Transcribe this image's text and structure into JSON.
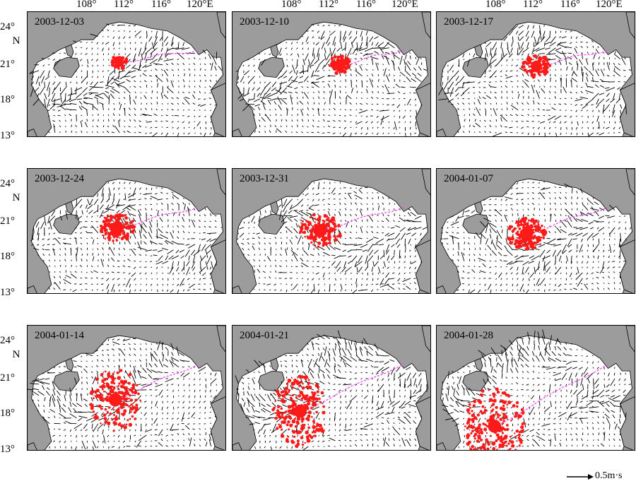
{
  "panels": [
    {
      "date": "2003-12-03",
      "spill_cx": 0.46,
      "spill_cy": 0.4,
      "spill_r": 0.04,
      "spread": 0.02
    },
    {
      "date": "2003-12-10",
      "spill_cx": 0.54,
      "spill_cy": 0.42,
      "spill_r": 0.05,
      "spread": 0.03
    },
    {
      "date": "2003-12-17",
      "spill_cx": 0.5,
      "spill_cy": 0.43,
      "spill_r": 0.05,
      "spread": 0.05
    },
    {
      "date": "2003-12-24",
      "spill_cx": 0.45,
      "spill_cy": 0.47,
      "spill_r": 0.06,
      "spread": 0.07
    },
    {
      "date": "2003-12-31",
      "spill_cx": 0.44,
      "spill_cy": 0.49,
      "spill_r": 0.06,
      "spread": 0.09
    },
    {
      "date": "2004-01-07",
      "spill_cx": 0.45,
      "spill_cy": 0.52,
      "spill_r": 0.06,
      "spread": 0.08
    },
    {
      "date": "2004-01-14",
      "spill_cx": 0.44,
      "spill_cy": 0.59,
      "spill_r": 0.06,
      "spread": 0.12
    },
    {
      "date": "2004-01-21",
      "spill_cx": 0.34,
      "spill_cy": 0.68,
      "spill_r": 0.06,
      "spread": 0.14
    },
    {
      "date": "2004-01-28",
      "spill_cx": 0.29,
      "spill_cy": 0.8,
      "spill_r": 0.06,
      "spread": 0.16
    }
  ],
  "lon_ticks": [
    "108°",
    "112°",
    "116°",
    "120°E"
  ],
  "lat_ticks": [
    "24°",
    "N",
    "21°",
    "18°",
    "13°"
  ],
  "scale_label": "0.5m·s",
  "colors": {
    "land": "#9c9c9c",
    "sea": "#ffffff",
    "vector": "#000000",
    "spill": "#ff1a1a",
    "track": "#ff44ff"
  }
}
